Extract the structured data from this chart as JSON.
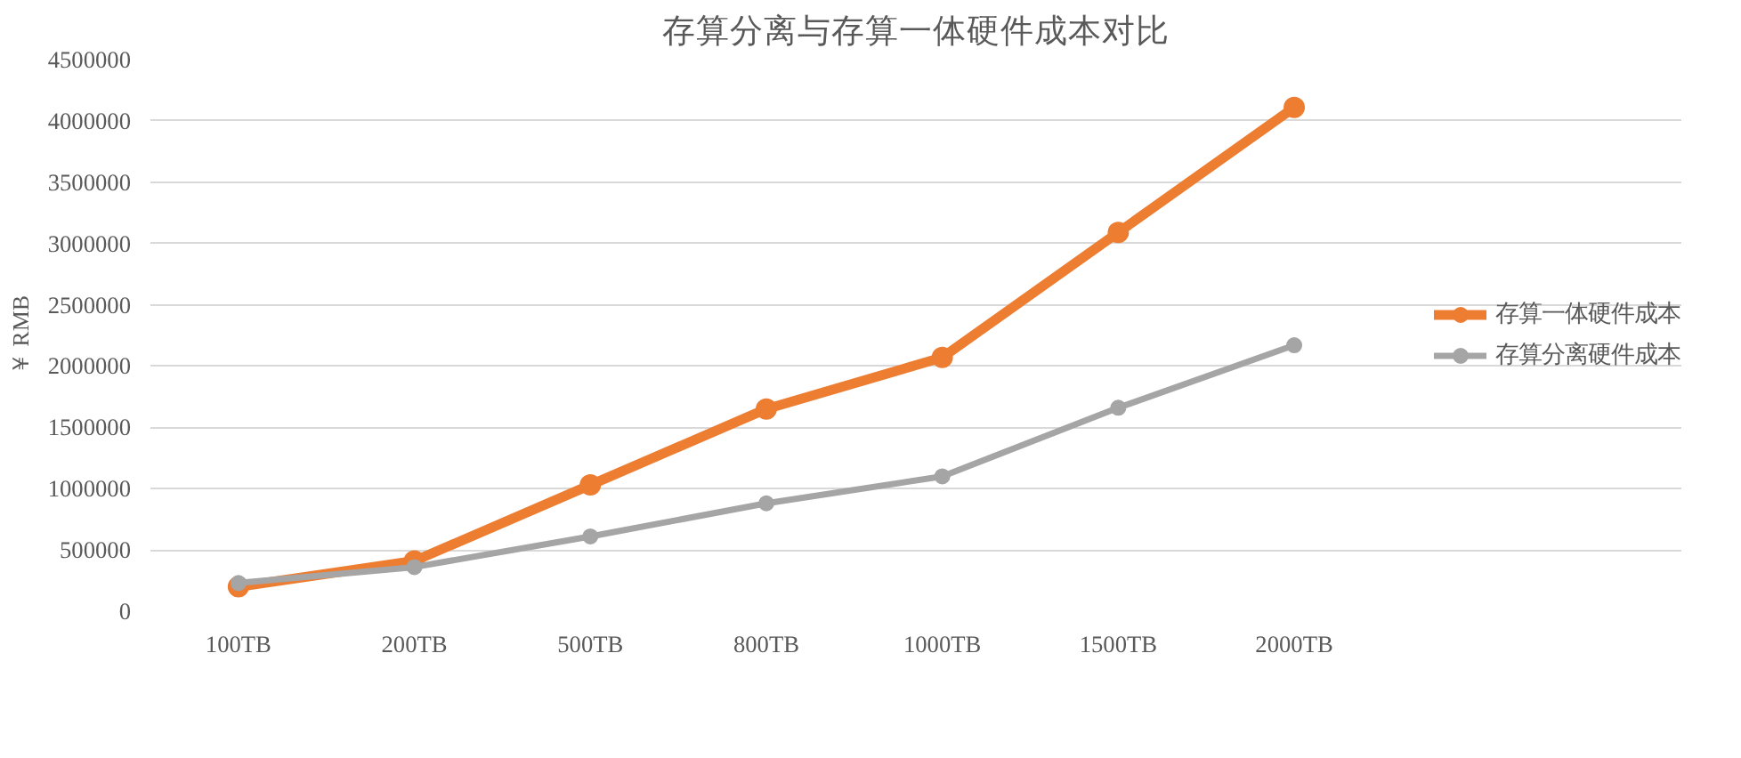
{
  "chart_data": {
    "type": "line",
    "title": "存算分离与存算一体硬件成本对比",
    "ylabel": "￥ RMB",
    "categories": [
      "100TB",
      "200TB",
      "500TB",
      "800TB",
      "1000TB",
      "1500TB",
      "2000TB"
    ],
    "series": [
      {
        "name": "存算一体硬件成本",
        "color": "#ed7d31",
        "values": [
          200000,
          410000,
          1030000,
          1650000,
          2070000,
          3090000,
          4110000
        ]
      },
      {
        "name": "存算分离硬件成本",
        "color": "#a5a5a5",
        "values": [
          230000,
          360000,
          610000,
          880000,
          1100000,
          1660000,
          2170000
        ]
      }
    ],
    "ylim": [
      0,
      4500000
    ],
    "yticks": [
      0,
      500000,
      1000000,
      1500000,
      2000000,
      2500000,
      3000000,
      3500000,
      4000000,
      4500000
    ],
    "grid": "y",
    "legend": "right",
    "marker": "circle",
    "line_style": "solid"
  }
}
